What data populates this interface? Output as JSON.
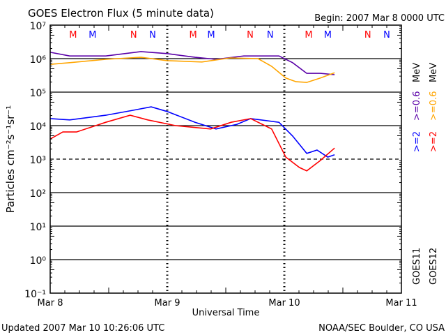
{
  "chart_data": {
    "type": "line",
    "title": "GOES Electron Flux (5 minute data)",
    "begin_label": "Begin: 2007 Mar 8 0000 UTC",
    "xlabel": "Universal Time",
    "ylabel": "Particles cm⁻²s⁻¹sr⁻¹",
    "yscale": "log",
    "ylim_exp": [
      -1,
      7
    ],
    "ytick_labels": [
      "10⁷",
      "10⁶",
      "10⁵",
      "10⁴",
      "10³",
      "10²",
      "10¹",
      "10⁰",
      "10⁻¹"
    ],
    "xlim_hours": [
      0,
      72
    ],
    "xtick_labels": [
      "Mar 8",
      "Mar 9",
      "Mar 10",
      "Mar 11"
    ],
    "threshold_exp": 3,
    "footer_left": "Updated 2007 Mar 10 10:26:06 UTC",
    "footer_right": "NOAA/SEC Boulder, CO USA",
    "legend": {
      "satellites": [
        "GOES11",
        "GOES12"
      ],
      "g11_hi": ">=2",
      "g11_lo": ">=0.6",
      "g12_hi": ">=2",
      "g12_lo": ">=0.6",
      "unit": "MeV"
    },
    "markers": [
      {
        "label": "M",
        "color": "#ff0000",
        "hours": [
          4.7,
          29.3,
          53
        ]
      },
      {
        "label": "M",
        "color": "#0000ff",
        "hours": [
          8.7,
          33,
          56.9
        ]
      },
      {
        "label": "N",
        "color": "#ff0000",
        "hours": [
          17.1,
          41,
          65.1
        ]
      },
      {
        "label": "N",
        "color": "#0000ff",
        "hours": [
          21,
          45.1,
          69
        ]
      }
    ],
    "series": [
      {
        "name": "GOES11 >=0.6 MeV",
        "color": "#5a00a8",
        "hours": [
          0,
          4,
          11.4,
          18.6,
          24,
          29.7,
          34,
          39.7,
          46.9,
          49.7,
          52.6,
          55.4,
          58.3
        ],
        "log10": [
          6.19,
          6.08,
          6.08,
          6.21,
          6.15,
          6.04,
          5.98,
          6.08,
          6.08,
          5.88,
          5.56,
          5.56,
          5.52
        ]
      },
      {
        "name": "GOES12 >=0.6 MeV",
        "color": "#ffa500",
        "hours": [
          0,
          4,
          11.4,
          18.6,
          24,
          31.1,
          36.9,
          42.6,
          45.4,
          48.3,
          50.4,
          52.6,
          55.4,
          58.3
        ],
        "log10": [
          5.83,
          5.88,
          5.98,
          6.04,
          5.94,
          5.9,
          6.02,
          6.0,
          5.77,
          5.42,
          5.31,
          5.29,
          5.42,
          5.58
        ]
      },
      {
        "name": "GOES11 >=2 MeV",
        "color": "#0000ff",
        "hours": [
          0,
          4,
          11.4,
          17.1,
          20.7,
          24,
          29.7,
          34,
          38.3,
          41.1,
          46.9,
          49.7,
          52.6,
          54.7,
          56.9,
          58.3
        ],
        "log10": [
          4.21,
          4.17,
          4.31,
          4.46,
          4.56,
          4.42,
          4.1,
          3.9,
          4.04,
          4.21,
          4.1,
          3.69,
          3.17,
          3.27,
          3.06,
          3.13
        ]
      },
      {
        "name": "GOES12 >=2 MeV",
        "color": "#ff0000",
        "hours": [
          0,
          2.6,
          5.4,
          11.4,
          16.4,
          20,
          25.7,
          32.9,
          37.1,
          41.1,
          45.4,
          48.3,
          51.1,
          52.6,
          55.4,
          58.3
        ],
        "log10": [
          3.6,
          3.81,
          3.81,
          4.1,
          4.31,
          4.17,
          4.0,
          3.9,
          4.1,
          4.21,
          3.9,
          3.06,
          2.75,
          2.65,
          2.96,
          3.33
        ]
      }
    ]
  }
}
